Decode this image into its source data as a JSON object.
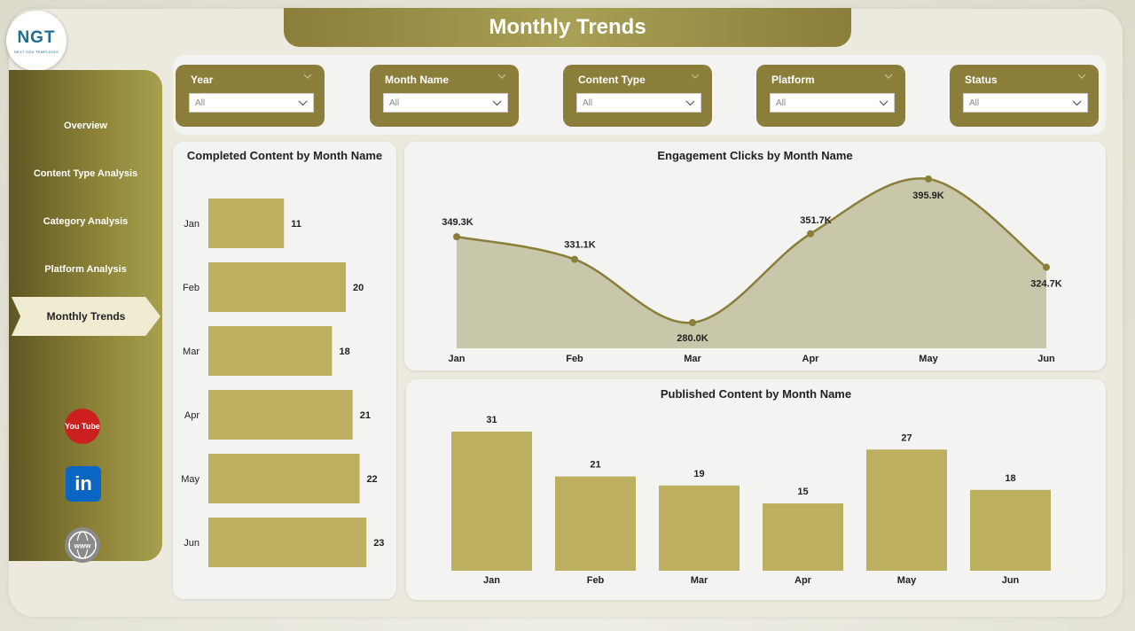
{
  "header": {
    "title": "Monthly Trends"
  },
  "logo": {
    "text": "NGT",
    "subtext": "NEXT GEN TEMPLATES"
  },
  "sidebar": {
    "items": [
      {
        "label": "Overview"
      },
      {
        "label": "Content Type Analysis"
      },
      {
        "label": "Category Analysis"
      },
      {
        "label": "Platform Analysis"
      },
      {
        "label": "Monthly Trends",
        "active": true
      }
    ],
    "social": [
      {
        "name": "youtube-icon",
        "label": "You Tube"
      },
      {
        "name": "linkedin-icon",
        "label": "in"
      },
      {
        "name": "www-icon",
        "label": "www"
      }
    ]
  },
  "filters": [
    {
      "label": "Year",
      "value": "All"
    },
    {
      "label": "Month Name",
      "value": "All"
    },
    {
      "label": "Content Type",
      "value": "All"
    },
    {
      "label": "Platform",
      "value": "All"
    },
    {
      "label": "Status",
      "value": "All"
    }
  ],
  "colors": {
    "accent": "#8a7e3a",
    "bar": "#bcb060",
    "area": "#c9c7a9"
  },
  "chart_data": [
    {
      "type": "bar",
      "orientation": "horizontal",
      "title": "Completed Content by Month Name",
      "categories": [
        "Jan",
        "Feb",
        "Mar",
        "Apr",
        "May",
        "Jun"
      ],
      "values": [
        11,
        20,
        18,
        21,
        22,
        23
      ],
      "data_labels": [
        "11",
        "20",
        "18",
        "21",
        "22",
        "23"
      ]
    },
    {
      "type": "area",
      "title": "Engagement Clicks by Month Name",
      "categories": [
        "Jan",
        "Feb",
        "Mar",
        "Apr",
        "May",
        "Jun"
      ],
      "values": [
        349.3,
        331.1,
        280.0,
        351.7,
        395.9,
        324.7
      ],
      "unit": "K",
      "data_labels": [
        "349.3K",
        "331.1K",
        "280.0K",
        "351.7K",
        "395.9K",
        "324.7K"
      ]
    },
    {
      "type": "bar",
      "title": "Published Content by Month Name",
      "categories": [
        "Jan",
        "Feb",
        "Mar",
        "Apr",
        "May",
        "Jun"
      ],
      "values": [
        31,
        21,
        19,
        15,
        27,
        18
      ],
      "data_labels": [
        "31",
        "21",
        "19",
        "15",
        "27",
        "18"
      ]
    }
  ]
}
